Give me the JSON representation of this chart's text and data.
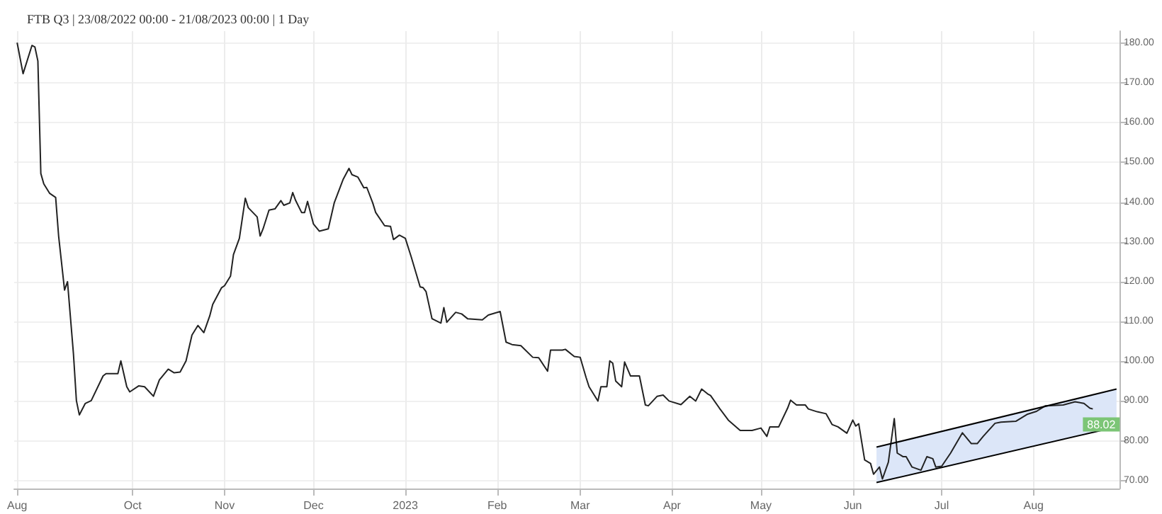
{
  "chart_data": {
    "type": "line",
    "title": "FTB Q3 | 23/08/2022 00:00 - 21/08/2023 00:00 | 1 Day",
    "marker": "none",
    "grid": true,
    "xlim": [
      "2022-08-22",
      "2023-08-30"
    ],
    "xticks": [
      {
        "value": "2022-08-23",
        "label": "Aug"
      },
      {
        "value": "2022-10-01",
        "label": "Oct"
      },
      {
        "value": "2022-11-01",
        "label": "Nov"
      },
      {
        "value": "2022-12-01",
        "label": "Dec"
      },
      {
        "value": "2023-01-01",
        "label": "2023"
      },
      {
        "value": "2023-02-01",
        "label": "Feb"
      },
      {
        "value": "2023-03-01",
        "label": "Mar"
      },
      {
        "value": "2023-04-01",
        "label": "Apr"
      },
      {
        "value": "2023-05-01",
        "label": "May"
      },
      {
        "value": "2023-06-01",
        "label": "Jun"
      },
      {
        "value": "2023-07-01",
        "label": "Jul"
      },
      {
        "value": "2023-08-01",
        "label": "Aug"
      }
    ],
    "ylim": [
      68,
      183
    ],
    "yticks": [
      {
        "value": 70,
        "label": "70.00"
      },
      {
        "value": 80,
        "label": "80.00"
      },
      {
        "value": 90,
        "label": "90.00"
      },
      {
        "value": 100,
        "label": "100.00"
      },
      {
        "value": 110,
        "label": "110.00"
      },
      {
        "value": 120,
        "label": "120.00"
      },
      {
        "value": 130,
        "label": "130.00"
      },
      {
        "value": 140,
        "label": "140.00"
      },
      {
        "value": 150,
        "label": "150.00"
      },
      {
        "value": 160,
        "label": "160.00"
      },
      {
        "value": 170,
        "label": "170.00"
      },
      {
        "value": 180,
        "label": "180.00"
      }
    ],
    "annotations": [
      {
        "text": "88.02",
        "x": "2023-08-21",
        "y": 88.02
      }
    ],
    "series": [
      {
        "color": "#222222",
        "x": [
          "2022-08-23",
          "2022-08-25",
          "2022-08-28",
          "2022-08-29",
          "2022-08-30",
          "2022-08-31",
          "2022-09-01",
          "2022-09-03",
          "2022-09-05",
          "2022-09-06",
          "2022-09-08",
          "2022-09-09",
          "2022-09-11",
          "2022-09-12",
          "2022-09-13",
          "2022-09-15",
          "2022-09-17",
          "2022-09-21",
          "2022-09-22",
          "2022-09-26",
          "2022-09-27",
          "2022-09-29",
          "2022-09-30",
          "2022-10-03",
          "2022-10-05",
          "2022-10-08",
          "2022-10-10",
          "2022-10-13",
          "2022-10-15",
          "2022-10-17",
          "2022-10-19",
          "2022-10-21",
          "2022-10-23",
          "2022-10-25",
          "2022-10-27",
          "2022-10-28",
          "2022-10-31",
          "2022-11-01",
          "2022-11-03",
          "2022-11-04",
          "2022-11-06",
          "2022-11-08",
          "2022-11-09",
          "2022-11-12",
          "2022-11-13",
          "2022-11-14",
          "2022-11-16",
          "2022-11-18",
          "2022-11-20",
          "2022-11-21",
          "2022-11-23",
          "2022-11-24",
          "2022-11-25",
          "2022-11-27",
          "2022-11-28",
          "2022-11-29",
          "2022-12-01",
          "2022-12-03",
          "2022-12-06",
          "2022-12-08",
          "2022-12-11",
          "2022-12-13",
          "2022-12-14",
          "2022-12-16",
          "2022-12-18",
          "2022-12-19",
          "2022-12-21",
          "2022-12-22",
          "2022-12-25",
          "2022-12-27",
          "2022-12-28",
          "2022-12-30",
          "2023-01-01",
          "2023-01-03",
          "2023-01-06",
          "2023-01-07",
          "2023-01-08",
          "2023-01-10",
          "2023-01-13",
          "2023-01-14",
          "2023-01-15",
          "2023-01-18",
          "2023-01-20",
          "2023-01-22",
          "2023-01-27",
          "2023-01-29",
          "2023-02-02",
          "2023-02-04",
          "2023-02-06",
          "2023-02-09",
          "2023-02-13",
          "2023-02-15",
          "2023-02-18",
          "2023-02-19",
          "2023-02-23",
          "2023-02-24",
          "2023-02-27",
          "2023-03-01",
          "2023-03-03",
          "2023-03-04",
          "2023-03-07",
          "2023-03-08",
          "2023-03-10",
          "2023-03-11",
          "2023-03-12",
          "2023-03-13",
          "2023-03-15",
          "2023-03-16",
          "2023-03-18",
          "2023-03-21",
          "2023-03-23",
          "2023-03-24",
          "2023-03-27",
          "2023-03-29",
          "2023-03-31",
          "2023-04-04",
          "2023-04-07",
          "2023-04-09",
          "2023-04-11",
          "2023-04-13",
          "2023-04-14",
          "2023-04-17",
          "2023-04-20",
          "2023-04-24",
          "2023-04-28",
          "2023-05-01",
          "2023-05-03",
          "2023-05-04",
          "2023-05-07",
          "2023-05-10",
          "2023-05-11",
          "2023-05-13",
          "2023-05-16",
          "2023-05-17",
          "2023-05-20",
          "2023-05-23",
          "2023-05-25",
          "2023-05-27",
          "2023-05-30",
          "2023-06-01",
          "2023-06-02",
          "2023-06-03",
          "2023-06-05",
          "2023-06-07",
          "2023-06-08",
          "2023-06-10",
          "2023-06-11",
          "2023-06-13",
          "2023-06-15",
          "2023-06-16",
          "2023-06-18",
          "2023-06-19",
          "2023-06-21",
          "2023-06-24",
          "2023-06-26",
          "2023-06-28",
          "2023-06-29",
          "2023-07-01",
          "2023-07-04",
          "2023-07-08",
          "2023-07-11",
          "2023-07-13",
          "2023-07-15",
          "2023-07-19",
          "2023-07-21",
          "2023-07-26",
          "2023-07-30",
          "2023-08-02",
          "2023-08-05",
          "2023-08-11",
          "2023-08-15",
          "2023-08-18",
          "2023-08-20",
          "2023-08-21"
        ],
        "values": [
          180.1,
          172.3,
          179.4,
          179.0,
          175.5,
          147.2,
          144.6,
          142.2,
          141.2,
          131.5,
          117.9,
          120.0,
          101.9,
          90.1,
          86.5,
          89.4,
          90.1,
          96.3,
          96.9,
          96.9,
          100.1,
          93.6,
          92.3,
          93.8,
          93.6,
          91.2,
          95.3,
          98.0,
          97.1,
          97.3,
          100.1,
          106.6,
          109.0,
          107.2,
          111.4,
          114.3,
          118.5,
          119.0,
          121.4,
          126.8,
          130.9,
          141.0,
          138.6,
          136.3,
          131.5,
          133.3,
          138.0,
          138.3,
          140.4,
          139.2,
          139.8,
          142.4,
          140.4,
          137.4,
          137.4,
          140.2,
          134.5,
          132.7,
          133.3,
          139.8,
          145.7,
          148.5,
          146.9,
          146.3,
          143.6,
          143.7,
          139.8,
          137.4,
          134.1,
          133.9,
          130.6,
          131.7,
          130.9,
          126.2,
          118.7,
          118.5,
          117.5,
          110.7,
          109.6,
          113.5,
          109.8,
          112.3,
          111.9,
          110.7,
          110.4,
          111.6,
          112.5,
          104.8,
          104.2,
          103.9,
          101.0,
          100.9,
          97.5,
          102.8,
          102.8,
          103.0,
          101.2,
          101.0,
          95.9,
          93.6,
          90.0,
          93.6,
          93.6,
          100.1,
          99.5,
          95.0,
          93.6,
          99.8,
          96.3,
          96.3,
          89.0,
          88.8,
          91.2,
          91.5,
          90.0,
          89.1,
          91.2,
          90.0,
          93.0,
          91.8,
          91.4,
          88.2,
          85.2,
          82.6,
          82.6,
          83.2,
          81.1,
          83.5,
          83.5,
          88.2,
          90.2,
          89.0,
          89.0,
          88.0,
          87.3,
          86.8,
          84.1,
          83.5,
          81.9,
          85.2,
          83.7,
          84.3,
          75.2,
          74.3,
          71.6,
          73.4,
          70.4,
          74.6,
          85.6,
          76.9,
          76.0,
          76.0,
          73.4,
          72.6,
          76.0,
          75.5,
          73.4,
          73.6,
          76.9,
          82.0,
          79.3,
          79.3,
          81.1,
          84.4,
          84.7,
          84.9,
          86.7,
          87.4,
          88.8,
          89.0,
          89.8,
          89.4,
          88.2,
          88.0
        ]
      },
      {
        "color": "#000000",
        "x": [
          "2023-06-09",
          "2023-08-29"
        ],
        "values": [
          78.4,
          93.0
        ],
        "lower": [
          69.5,
          83.5
        ],
        "upper": [
          78.4,
          93.0
        ]
      }
    ]
  }
}
